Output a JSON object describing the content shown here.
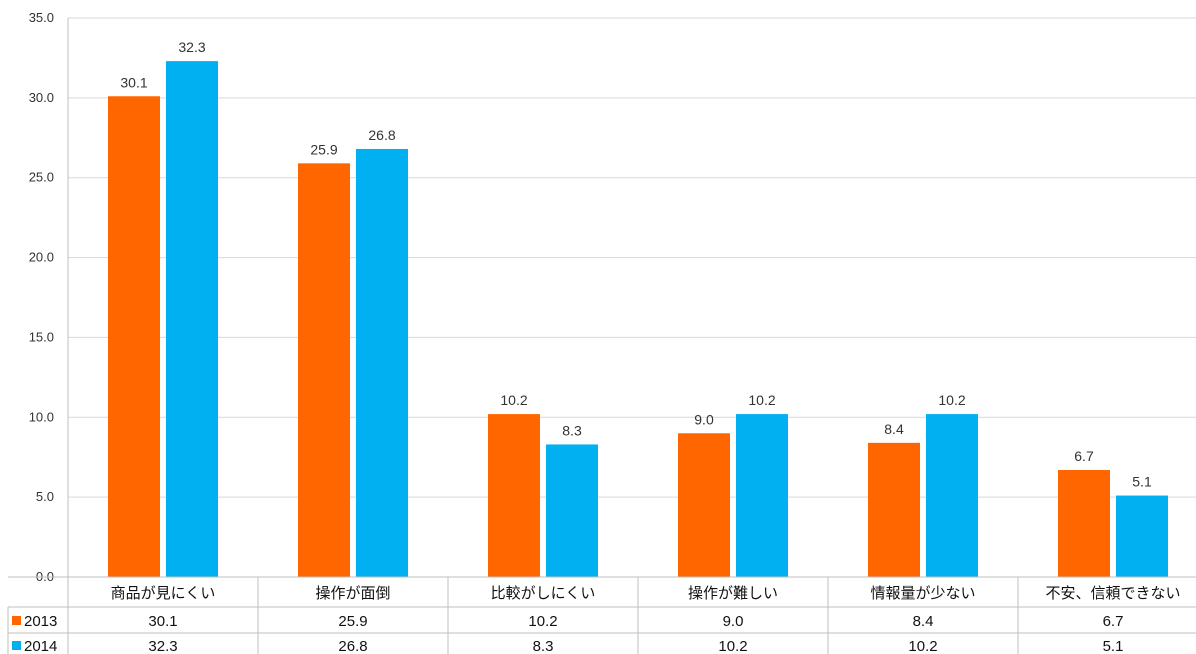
{
  "chart_data": {
    "type": "bar",
    "categories": [
      "商品が見にくい",
      "操作が面倒",
      "比較がしにくい",
      "操作が難しい",
      "情報量が少ない",
      "不安、信頼できない"
    ],
    "series": [
      {
        "name": "2013",
        "color": "#ff6600",
        "values": [
          30.1,
          25.9,
          10.2,
          9.0,
          8.4,
          6.7
        ]
      },
      {
        "name": "2014",
        "color": "#00b0f0",
        "values": [
          32.3,
          26.8,
          8.3,
          10.2,
          10.2,
          5.1
        ]
      }
    ],
    "y_ticks": [
      "0.0",
      "5.0",
      "10.0",
      "15.0",
      "20.0",
      "25.0",
      "30.0",
      "35.0"
    ],
    "ylim": [
      0,
      35
    ],
    "grid": true,
    "legend": "data-table-left",
    "title": "",
    "xlabel": "",
    "ylabel": ""
  }
}
